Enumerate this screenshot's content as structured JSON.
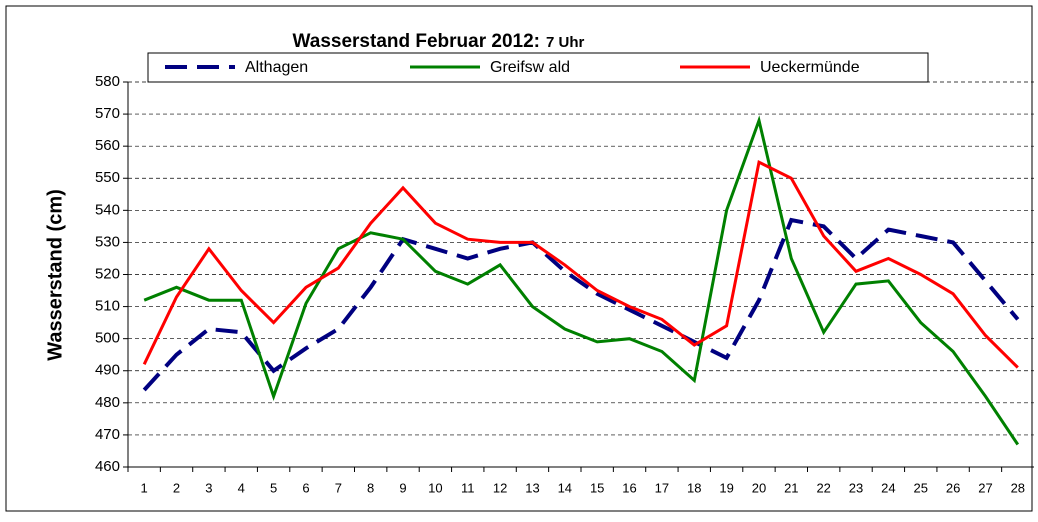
{
  "chart_data": {
    "type": "line",
    "title": "Wasserstand Februar 2012:",
    "subtitle": "7 Uhr",
    "y_label": "Wasserstand (cm)",
    "categories": [
      1,
      2,
      3,
      4,
      5,
      6,
      7,
      8,
      9,
      10,
      11,
      12,
      13,
      14,
      15,
      16,
      17,
      18,
      19,
      20,
      21,
      22,
      23,
      24,
      25,
      26,
      27,
      28
    ],
    "series": [
      {
        "name": "Althagen",
        "color": "#000080",
        "dashed": true,
        "values": [
          484,
          495,
          503,
          502,
          490,
          497,
          503,
          516,
          531,
          528,
          525,
          528,
          530,
          521,
          514,
          509,
          504,
          499,
          494,
          512,
          537,
          535,
          525,
          534,
          532,
          530,
          518,
          506
        ]
      },
      {
        "name": "Greifsw ald",
        "color": "#008000",
        "dashed": false,
        "values": [
          512,
          516,
          512,
          512,
          482,
          511,
          528,
          533,
          531,
          521,
          517,
          523,
          510,
          503,
          499,
          500,
          496,
          487,
          540,
          568,
          525,
          502,
          517,
          518,
          505,
          496,
          482,
          467
        ]
      },
      {
        "name": "Ueckermünde",
        "color": "#ff0000",
        "dashed": false,
        "values": [
          492,
          513,
          528,
          515,
          505,
          516,
          522,
          536,
          547,
          536,
          531,
          530,
          530,
          523,
          515,
          510,
          506,
          498,
          504,
          555,
          550,
          532,
          521,
          525,
          520,
          514,
          501,
          491
        ]
      }
    ],
    "ylim": [
      460,
      580
    ],
    "yticks": [
      460,
      470,
      480,
      490,
      500,
      510,
      520,
      530,
      540,
      550,
      560,
      570,
      580
    ],
    "grid": true,
    "legend": "top"
  }
}
